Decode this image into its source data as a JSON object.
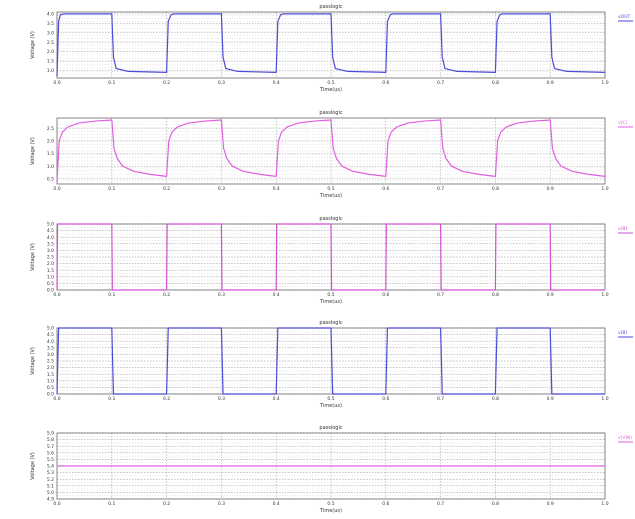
{
  "chart_data": [
    {
      "type": "line",
      "title": "passlogic",
      "xlabel": "Time(us)",
      "ylabel": "Voltage (V)",
      "xlim": [
        0,
        1.0
      ],
      "ylim": [
        0.6,
        4.1
      ],
      "xticks": [
        "0.0",
        "0.1",
        "0.2",
        "0.3",
        "0.4",
        "0.5",
        "0.6",
        "0.7",
        "0.8",
        "0.9",
        "1.0"
      ],
      "yticks": [
        "1.0",
        "1.5",
        "2.0",
        "2.5",
        "3.0",
        "3.5",
        "4.0"
      ],
      "color": "#4b4bd8",
      "legend": "vOUT",
      "legend_position": "right",
      "grid": true,
      "series": [
        {
          "x": [
            0,
            0.003,
            0.006,
            0.012,
            0.1,
            0.103,
            0.108,
            0.13,
            0.2,
            0.203,
            0.208,
            0.212,
            0.3,
            0.303,
            0.308,
            0.33,
            0.4,
            0.403,
            0.408,
            0.412,
            0.5,
            0.503,
            0.508,
            0.53,
            0.6,
            0.603,
            0.608,
            0.612,
            0.7,
            0.703,
            0.708,
            0.73,
            0.8,
            0.803,
            0.808,
            0.812,
            0.9,
            0.903,
            0.908,
            0.93,
            1.0
          ],
          "y": [
            0.7,
            3.6,
            3.95,
            4.0,
            4.0,
            1.7,
            1.1,
            0.95,
            0.9,
            3.6,
            3.95,
            4.0,
            4.0,
            1.7,
            1.1,
            0.95,
            0.9,
            3.6,
            3.95,
            4.0,
            4.0,
            1.7,
            1.1,
            0.95,
            0.9,
            3.6,
            3.95,
            4.0,
            4.0,
            1.7,
            1.1,
            0.95,
            0.9,
            3.6,
            3.95,
            4.0,
            4.0,
            1.7,
            1.1,
            0.95,
            0.9
          ]
        }
      ]
    },
    {
      "type": "line",
      "title": "passlogic",
      "xlabel": "Time(us)",
      "ylabel": "Voltage (V)",
      "xlim": [
        0,
        1.0
      ],
      "ylim": [
        0.3,
        2.9
      ],
      "xticks": [
        "0.0",
        "0.1",
        "0.2",
        "0.3",
        "0.4",
        "0.5",
        "0.6",
        "0.7",
        "0.8",
        "0.9",
        "1.0"
      ],
      "yticks": [
        "0.5",
        "1.0",
        "1.5",
        "2.0",
        "2.5"
      ],
      "color": "#e060e0",
      "legend": "v(C)",
      "legend_position": "right",
      "grid": true,
      "series": [
        {
          "x": [
            0,
            0.004,
            0.01,
            0.02,
            0.04,
            0.07,
            0.1,
            0.104,
            0.11,
            0.12,
            0.14,
            0.17,
            0.2,
            0.204,
            0.21,
            0.22,
            0.24,
            0.27,
            0.3,
            0.304,
            0.31,
            0.32,
            0.34,
            0.37,
            0.4,
            0.404,
            0.41,
            0.42,
            0.44,
            0.47,
            0.5,
            0.504,
            0.51,
            0.52,
            0.54,
            0.57,
            0.6,
            0.604,
            0.61,
            0.62,
            0.64,
            0.67,
            0.7,
            0.704,
            0.71,
            0.72,
            0.74,
            0.77,
            0.8,
            0.804,
            0.81,
            0.82,
            0.84,
            0.87,
            0.9,
            0.904,
            0.91,
            0.92,
            0.94,
            0.97,
            1.0
          ],
          "y": [
            0.4,
            2.0,
            2.35,
            2.55,
            2.7,
            2.78,
            2.82,
            1.7,
            1.3,
            1.0,
            0.8,
            0.68,
            0.6,
            2.0,
            2.35,
            2.55,
            2.7,
            2.78,
            2.82,
            1.7,
            1.3,
            1.0,
            0.8,
            0.68,
            0.6,
            2.0,
            2.35,
            2.55,
            2.7,
            2.78,
            2.82,
            1.7,
            1.3,
            1.0,
            0.8,
            0.68,
            0.6,
            2.0,
            2.35,
            2.55,
            2.7,
            2.78,
            2.82,
            1.7,
            1.3,
            1.0,
            0.8,
            0.68,
            0.6,
            2.0,
            2.35,
            2.55,
            2.7,
            2.78,
            2.82,
            1.7,
            1.3,
            1.0,
            0.8,
            0.68,
            0.6
          ]
        }
      ]
    },
    {
      "type": "line",
      "title": "passlogic",
      "xlabel": "Time(us)",
      "ylabel": "Voltage (V)",
      "xlim": [
        0,
        1.0
      ],
      "ylim": [
        0.0,
        5.0
      ],
      "xticks": [
        "0.0",
        "0.1",
        "0.2",
        "0.3",
        "0.4",
        "0.5",
        "0.6",
        "0.7",
        "0.8",
        "0.9",
        "1.0"
      ],
      "yticks": [
        "0.0",
        "0.5",
        "1.0",
        "1.5",
        "2.0",
        "2.5",
        "3.0",
        "3.5",
        "4.0",
        "4.5",
        "5.0"
      ],
      "color": "#d050d0",
      "legend": "v(B)",
      "legend_position": "right",
      "grid": true,
      "series": [
        {
          "x": [
            0,
            0.001,
            0.1,
            0.101,
            0.2,
            0.201,
            0.3,
            0.301,
            0.4,
            0.401,
            0.5,
            0.501,
            0.6,
            0.601,
            0.7,
            0.701,
            0.8,
            0.801,
            0.9,
            0.901,
            1.0
          ],
          "y": [
            0.0,
            5.0,
            5.0,
            0.0,
            0.0,
            5.0,
            5.0,
            0.0,
            0.0,
            5.0,
            5.0,
            0.0,
            0.0,
            5.0,
            5.0,
            0.0,
            0.0,
            5.0,
            5.0,
            0.0,
            0.0
          ]
        }
      ]
    },
    {
      "type": "line",
      "title": "passlogic",
      "xlabel": "Time(us)",
      "ylabel": "Voltage (V)",
      "xlim": [
        0,
        1.0
      ],
      "ylim": [
        0.0,
        5.0
      ],
      "xticks": [
        "0.0",
        "0.1",
        "0.2",
        "0.3",
        "0.4",
        "0.5",
        "0.6",
        "0.7",
        "0.8",
        "0.9",
        "1.0"
      ],
      "yticks": [
        "0.0",
        "0.5",
        "1.0",
        "1.5",
        "2.0",
        "2.5",
        "3.0",
        "3.5",
        "4.0",
        "4.5",
        "5.0"
      ],
      "color": "#4b4bd8",
      "legend": "v(B)",
      "legend_position": "right",
      "grid": true,
      "series": [
        {
          "x": [
            0,
            0.003,
            0.1,
            0.103,
            0.2,
            0.203,
            0.3,
            0.303,
            0.4,
            0.403,
            0.5,
            0.503,
            0.6,
            0.603,
            0.7,
            0.703,
            0.8,
            0.803,
            0.9,
            0.903,
            1.0
          ],
          "y": [
            0.0,
            5.0,
            5.0,
            0.0,
            0.0,
            5.0,
            5.0,
            0.0,
            0.0,
            5.0,
            5.0,
            0.0,
            0.0,
            5.0,
            5.0,
            0.0,
            0.0,
            5.0,
            5.0,
            0.0,
            0.0
          ]
        }
      ]
    },
    {
      "type": "line",
      "title": "passlogic",
      "xlabel": "Time(us)",
      "ylabel": "Voltage (V)",
      "xlim": [
        0,
        1.0
      ],
      "ylim": [
        4.9,
        5.9
      ],
      "xticks": [
        "0.0",
        "0.1",
        "0.2",
        "0.3",
        "0.4",
        "0.5",
        "0.6",
        "0.7",
        "0.8",
        "0.9",
        "1.0"
      ],
      "yticks": [
        "4.9",
        "5.0",
        "5.1",
        "5.2",
        "5.3",
        "5.4",
        "5.5",
        "5.6",
        "5.7",
        "5.8",
        "5.9"
      ],
      "color": "#e060e0",
      "legend": "v(VIN)",
      "legend_position": "right",
      "grid": true,
      "series": [
        {
          "x": [
            0,
            1.0
          ],
          "y": [
            5.4,
            5.4
          ]
        }
      ]
    }
  ]
}
